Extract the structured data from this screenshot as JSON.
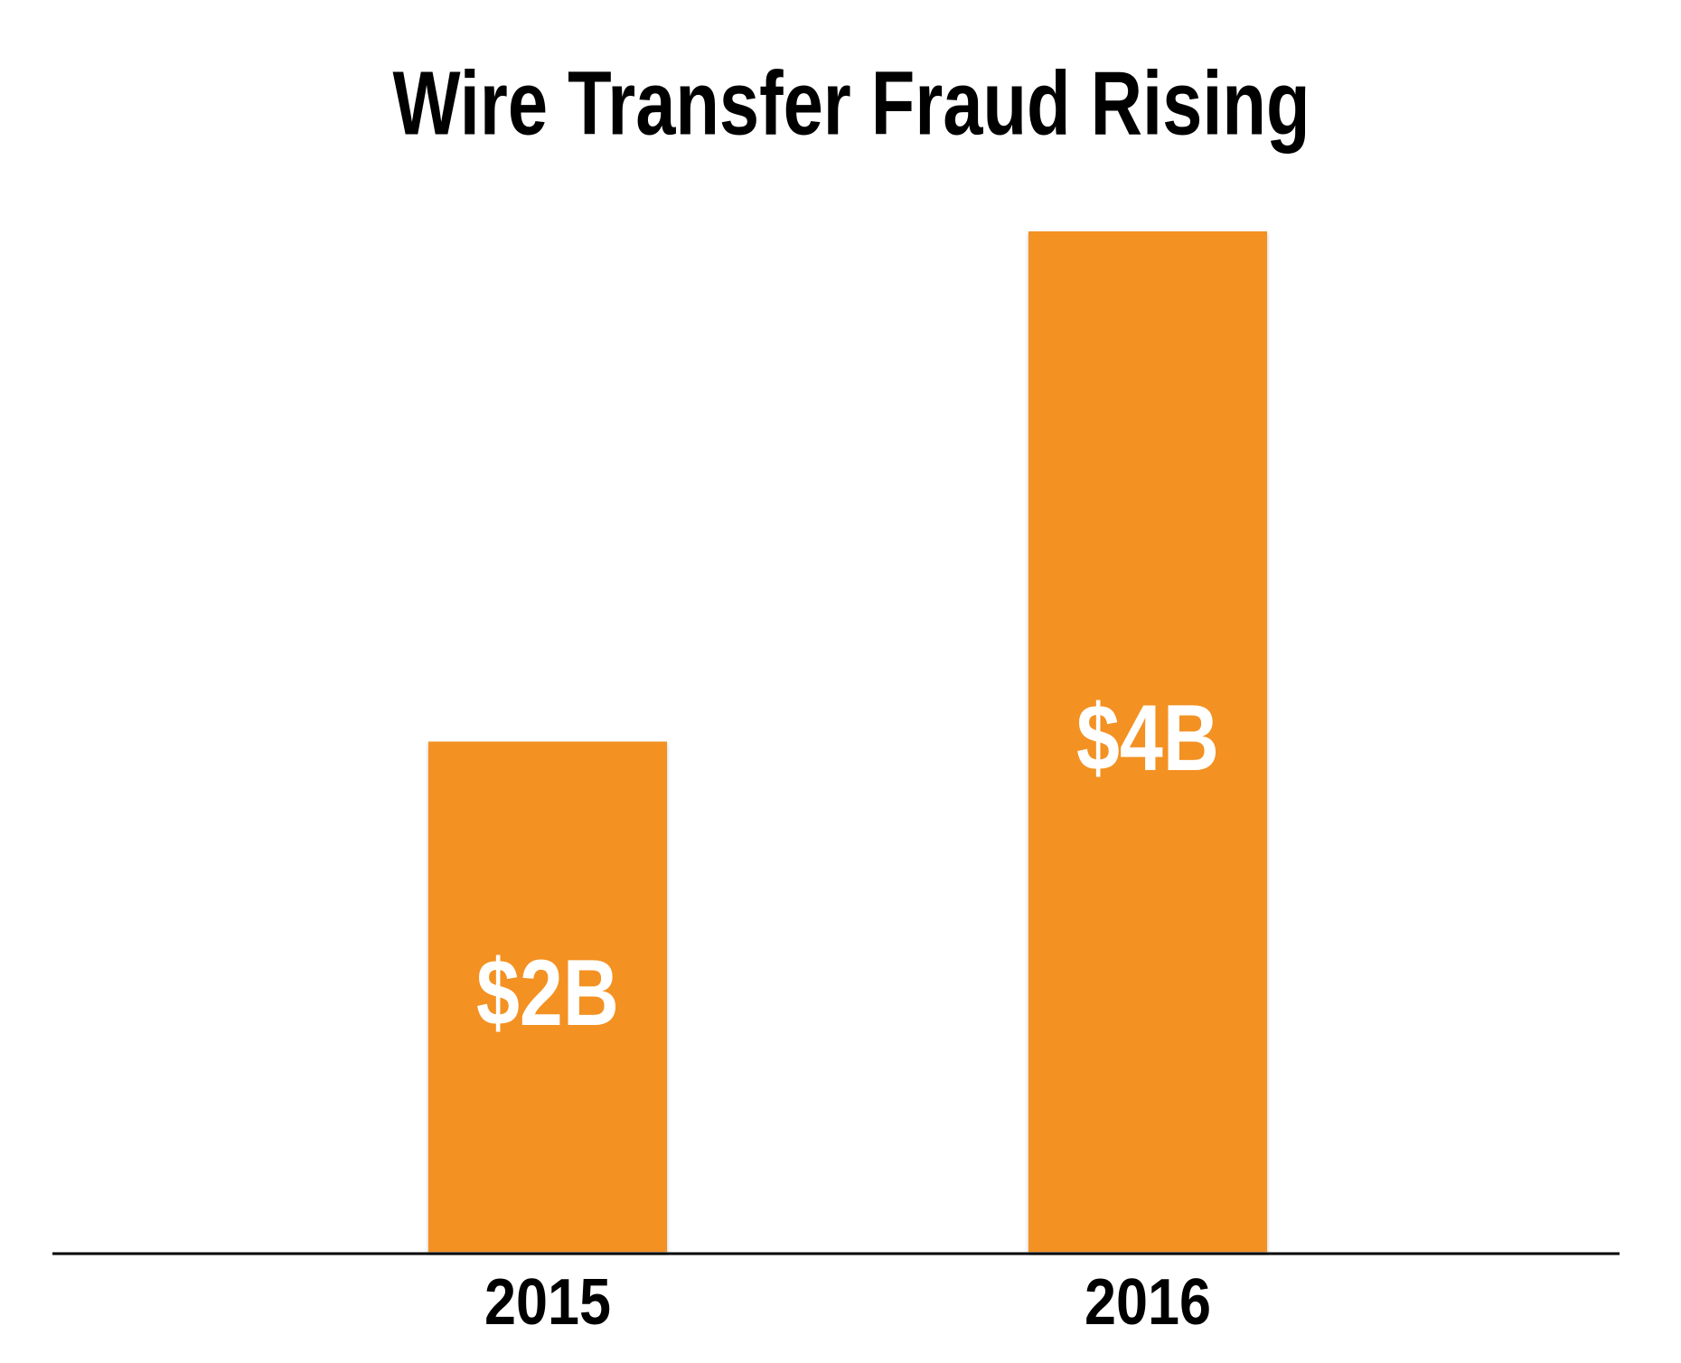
{
  "chart_data": {
    "type": "bar",
    "title": "Wire Transfer Fraud Rising",
    "categories": [
      "2015",
      "2016"
    ],
    "values": [
      2,
      4
    ],
    "value_labels": [
      "$2B",
      "$4B"
    ],
    "color": "#f39121",
    "ylim": [
      0,
      4
    ]
  }
}
